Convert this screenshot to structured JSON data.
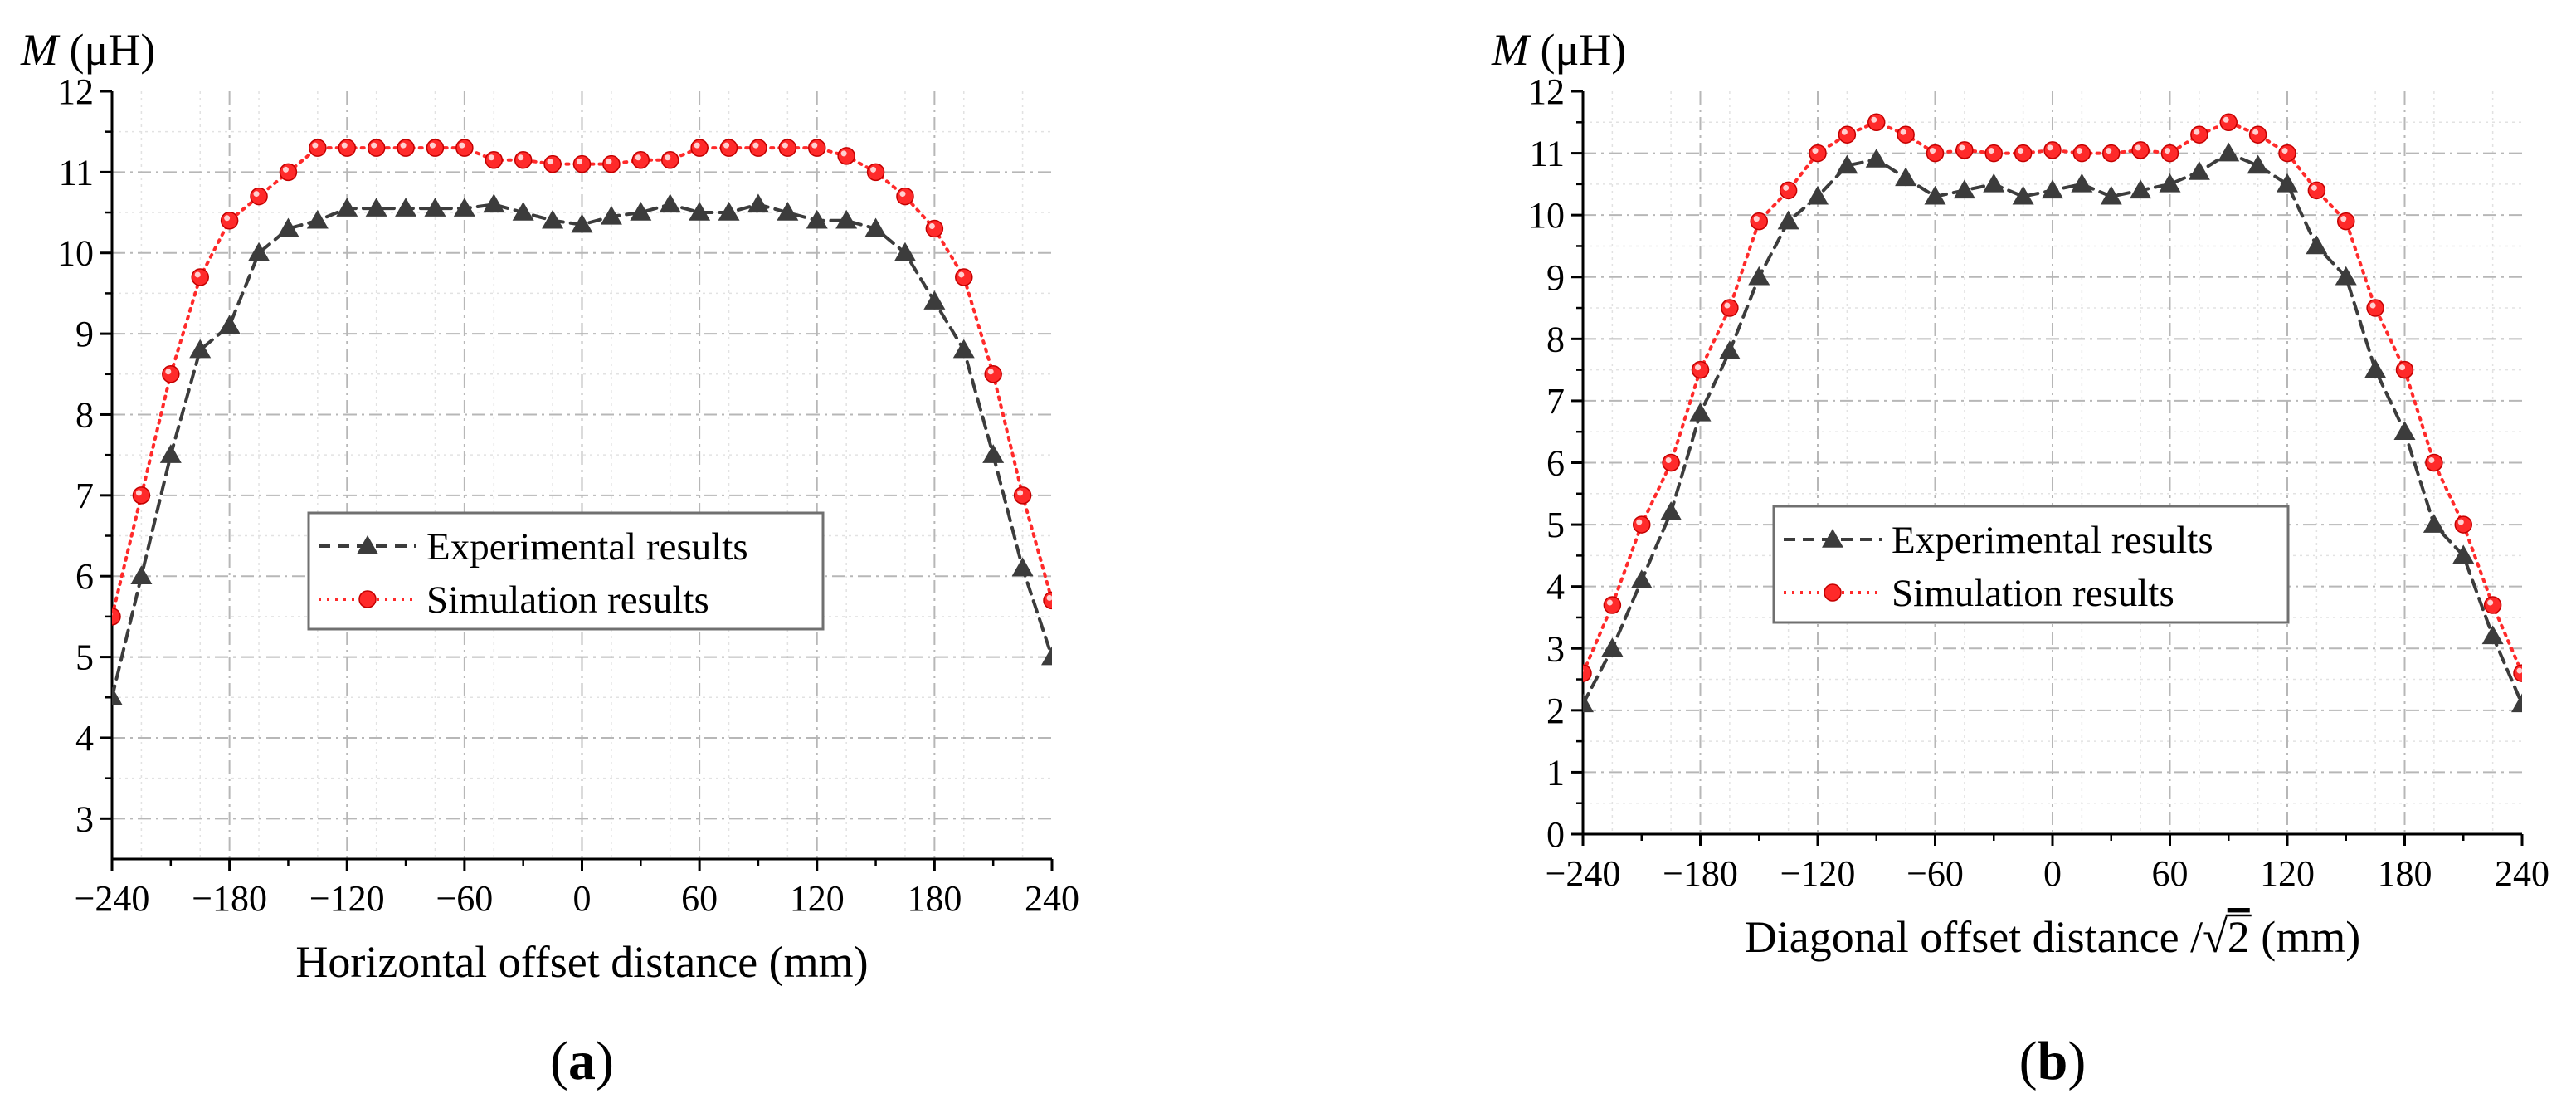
{
  "chart_data": [
    {
      "type": "line",
      "panel_label_open": "(",
      "panel_label": "a",
      "panel_label_close": ")",
      "ylabel_symbol": "M",
      "ylabel_unit": " (μH)",
      "xlabel": "Horizontal offset distance (mm)",
      "xlim": [
        -240,
        240
      ],
      "ylim": [
        2.5,
        12
      ],
      "xticks": [
        -240,
        -180,
        -120,
        -60,
        0,
        60,
        120,
        180,
        240
      ],
      "xtick_labels": [
        "−240",
        "−180",
        "−120",
        "−60",
        "0",
        "60",
        "120",
        "180",
        "240"
      ],
      "yticks": [
        3,
        4,
        5,
        6,
        7,
        8,
        9,
        10,
        11,
        12
      ],
      "ytick_labels": [
        "3",
        "4",
        "5",
        "6",
        "7",
        "8",
        "9",
        "10",
        "11",
        "12"
      ],
      "grid": true,
      "legend_position": "center",
      "series": [
        {
          "name": "Experimental results",
          "color": "#3c3c3c",
          "line_style": "dashed",
          "marker": "triangle",
          "x": [
            -240,
            -225,
            -210,
            -195,
            -180,
            -165,
            -150,
            -135,
            -120,
            -105,
            -90,
            -75,
            -60,
            -45,
            -30,
            -15,
            0,
            15,
            30,
            45,
            60,
            75,
            90,
            105,
            120,
            135,
            150,
            165,
            180,
            195,
            210,
            225,
            240
          ],
          "values": [
            4.5,
            6.0,
            7.5,
            8.8,
            9.1,
            10.0,
            10.3,
            10.4,
            10.55,
            10.55,
            10.55,
            10.55,
            10.55,
            10.6,
            10.5,
            10.4,
            10.35,
            10.45,
            10.5,
            10.6,
            10.5,
            10.5,
            10.6,
            10.5,
            10.4,
            10.4,
            10.3,
            10.0,
            9.4,
            8.8,
            7.5,
            6.1,
            5.0
          ]
        },
        {
          "name": "Simulation results",
          "color": "#ff2a2a",
          "line_style": "dotted",
          "marker": "circle",
          "x": [
            -240,
            -225,
            -210,
            -195,
            -180,
            -165,
            -150,
            -135,
            -120,
            -105,
            -90,
            -75,
            -60,
            -45,
            -30,
            -15,
            0,
            15,
            30,
            45,
            60,
            75,
            90,
            105,
            120,
            135,
            150,
            165,
            180,
            195,
            210,
            225,
            240
          ],
          "values": [
            5.5,
            7.0,
            8.5,
            9.7,
            10.4,
            10.7,
            11.0,
            11.3,
            11.3,
            11.3,
            11.3,
            11.3,
            11.3,
            11.15,
            11.15,
            11.1,
            11.1,
            11.1,
            11.15,
            11.15,
            11.3,
            11.3,
            11.3,
            11.3,
            11.3,
            11.2,
            11.0,
            10.7,
            10.3,
            9.7,
            8.5,
            7.0,
            5.7
          ]
        }
      ]
    },
    {
      "type": "line",
      "panel_label_open": "(",
      "panel_label": "b",
      "panel_label_close": ")",
      "ylabel_symbol": "M",
      "ylabel_unit": " (μH)",
      "xlabel_prefix": "Diagonal offset distance /",
      "xlabel_radical": "√",
      "xlabel_radicand": "2",
      "xlabel_suffix": " (mm)",
      "xlim": [
        -240,
        240
      ],
      "ylim": [
        0,
        12
      ],
      "xticks": [
        -240,
        -180,
        -120,
        -60,
        0,
        60,
        120,
        180,
        240
      ],
      "xtick_labels": [
        "−240",
        "−180",
        "−120",
        "−60",
        "0",
        "60",
        "120",
        "180",
        "240"
      ],
      "yticks": [
        0,
        1,
        2,
        3,
        4,
        5,
        6,
        7,
        8,
        9,
        10,
        11,
        12
      ],
      "ytick_labels": [
        "0",
        "1",
        "2",
        "3",
        "4",
        "5",
        "6",
        "7",
        "8",
        "9",
        "10",
        "11",
        "12"
      ],
      "grid": true,
      "legend_position": "center",
      "series": [
        {
          "name": "Experimental results",
          "color": "#3c3c3c",
          "line_style": "dashed",
          "marker": "triangle",
          "x": [
            -240,
            -225,
            -210,
            -195,
            -180,
            -165,
            -150,
            -135,
            -120,
            -105,
            -90,
            -75,
            -60,
            -45,
            -30,
            -15,
            0,
            15,
            30,
            45,
            60,
            75,
            90,
            105,
            120,
            135,
            150,
            165,
            180,
            195,
            210,
            225,
            240
          ],
          "values": [
            2.1,
            3.0,
            4.1,
            5.2,
            6.8,
            7.8,
            9.0,
            9.9,
            10.3,
            10.8,
            10.9,
            10.6,
            10.3,
            10.4,
            10.5,
            10.3,
            10.4,
            10.5,
            10.3,
            10.4,
            10.5,
            10.7,
            11.0,
            10.8,
            10.5,
            9.5,
            9.0,
            7.5,
            6.5,
            5.0,
            4.5,
            3.2,
            2.1
          ]
        },
        {
          "name": "Simulation results",
          "color": "#ff2a2a",
          "line_style": "dotted",
          "marker": "circle",
          "x": [
            -240,
            -225,
            -210,
            -195,
            -180,
            -165,
            -150,
            -135,
            -120,
            -105,
            -90,
            -75,
            -60,
            -45,
            -30,
            -15,
            0,
            15,
            30,
            45,
            60,
            75,
            90,
            105,
            120,
            135,
            150,
            165,
            180,
            195,
            210,
            225,
            240
          ],
          "values": [
            2.6,
            3.7,
            5.0,
            6.0,
            7.5,
            8.5,
            9.9,
            10.4,
            11.0,
            11.3,
            11.5,
            11.3,
            11.0,
            11.05,
            11.0,
            11.0,
            11.05,
            11.0,
            11.0,
            11.05,
            11.0,
            11.3,
            11.5,
            11.3,
            11.0,
            10.4,
            9.9,
            8.5,
            7.5,
            6.0,
            5.0,
            3.7,
            2.6
          ]
        }
      ]
    }
  ]
}
